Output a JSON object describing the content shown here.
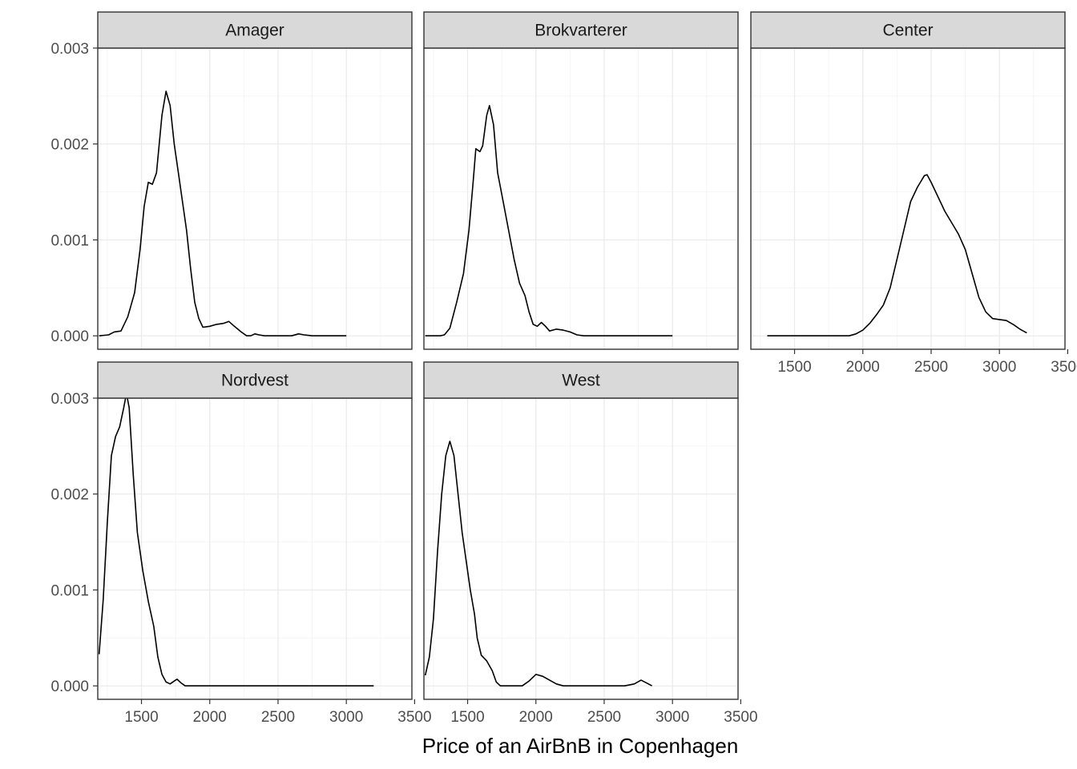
{
  "chart_data": {
    "type": "line",
    "subtype": "density",
    "facet_layout": "wrap-3-columns",
    "title": "",
    "xlabel": "Price of an AirBnB in Copenhagen",
    "ylabel": "",
    "xlim": [
      1180,
      3480
    ],
    "ylim": [
      -0.00014,
      0.003
    ],
    "x_ticks": [
      1500,
      2000,
      2500,
      3000,
      3500
    ],
    "x_tick_labels": [
      "1500",
      "2000",
      "2500",
      "3000",
      "3500"
    ],
    "y_ticks": [
      0,
      0.001,
      0.002,
      0.003
    ],
    "y_tick_labels": [
      "0.000",
      "0.001",
      "0.002",
      "0.003"
    ],
    "grid": true,
    "legend": "none",
    "line_color": "#000000",
    "strip_color": "#d9d9d9",
    "series": [
      {
        "name": "Amager",
        "points": [
          [
            1190,
            0.0
          ],
          [
            1260,
            1e-05
          ],
          [
            1300,
            4e-05
          ],
          [
            1350,
            5e-05
          ],
          [
            1400,
            0.0002
          ],
          [
            1450,
            0.00045
          ],
          [
            1490,
            0.0009
          ],
          [
            1520,
            0.00135
          ],
          [
            1550,
            0.0016
          ],
          [
            1580,
            0.00158
          ],
          [
            1610,
            0.0017
          ],
          [
            1650,
            0.0023
          ],
          [
            1680,
            0.00255
          ],
          [
            1710,
            0.0024
          ],
          [
            1740,
            0.002
          ],
          [
            1770,
            0.0017
          ],
          [
            1800,
            0.0014
          ],
          [
            1830,
            0.0011
          ],
          [
            1860,
            0.0007
          ],
          [
            1890,
            0.00035
          ],
          [
            1920,
            0.00018
          ],
          [
            1950,
            9e-05
          ],
          [
            2000,
            0.0001
          ],
          [
            2050,
            0.00012
          ],
          [
            2100,
            0.00013
          ],
          [
            2140,
            0.00015
          ],
          [
            2180,
            0.0001
          ],
          [
            2230,
            4e-05
          ],
          [
            2270,
            0.0
          ],
          [
            2300,
            0.0
          ],
          [
            2330,
            2e-05
          ],
          [
            2360,
            1e-05
          ],
          [
            2400,
            0.0
          ],
          [
            2500,
            0.0
          ],
          [
            2600,
            0.0
          ],
          [
            2650,
            2e-05
          ],
          [
            2690,
            1e-05
          ],
          [
            2750,
            0.0
          ],
          [
            2900,
            0.0
          ],
          [
            3000,
            0.0
          ]
        ]
      },
      {
        "name": "Brokvarterer",
        "points": [
          [
            1190,
            0.0
          ],
          [
            1300,
            0.0
          ],
          [
            1330,
            1e-05
          ],
          [
            1370,
            8e-05
          ],
          [
            1420,
            0.00035
          ],
          [
            1470,
            0.00065
          ],
          [
            1510,
            0.0011
          ],
          [
            1540,
            0.0016
          ],
          [
            1560,
            0.00195
          ],
          [
            1590,
            0.00192
          ],
          [
            1610,
            0.00198
          ],
          [
            1640,
            0.0023
          ],
          [
            1660,
            0.0024
          ],
          [
            1690,
            0.0022
          ],
          [
            1720,
            0.0017
          ],
          [
            1760,
            0.0014
          ],
          [
            1800,
            0.0011
          ],
          [
            1840,
            0.0008
          ],
          [
            1880,
            0.00055
          ],
          [
            1920,
            0.00042
          ],
          [
            1950,
            0.00025
          ],
          [
            1980,
            0.00012
          ],
          [
            2010,
            0.0001
          ],
          [
            2040,
            0.00014
          ],
          [
            2070,
            0.0001
          ],
          [
            2100,
            5e-05
          ],
          [
            2150,
            7e-05
          ],
          [
            2200,
            6e-05
          ],
          [
            2250,
            4e-05
          ],
          [
            2300,
            1e-05
          ],
          [
            2350,
            0.0
          ],
          [
            2450,
            0.0
          ],
          [
            2600,
            0.0
          ],
          [
            3000,
            0.0
          ]
        ]
      },
      {
        "name": "Center",
        "points": [
          [
            1300,
            0.0
          ],
          [
            1600,
            0.0
          ],
          [
            1900,
            0.0
          ],
          [
            1950,
            2e-05
          ],
          [
            2000,
            6e-05
          ],
          [
            2050,
            0.00013
          ],
          [
            2100,
            0.00022
          ],
          [
            2150,
            0.00032
          ],
          [
            2200,
            0.0005
          ],
          [
            2250,
            0.0008
          ],
          [
            2300,
            0.0011
          ],
          [
            2350,
            0.0014
          ],
          [
            2400,
            0.00155
          ],
          [
            2450,
            0.00167
          ],
          [
            2470,
            0.00168
          ],
          [
            2500,
            0.0016
          ],
          [
            2550,
            0.00145
          ],
          [
            2600,
            0.0013
          ],
          [
            2650,
            0.00118
          ],
          [
            2700,
            0.00106
          ],
          [
            2750,
            0.0009
          ],
          [
            2800,
            0.00065
          ],
          [
            2850,
            0.0004
          ],
          [
            2900,
            0.00025
          ],
          [
            2950,
            0.00018
          ],
          [
            3000,
            0.00017
          ],
          [
            3050,
            0.00016
          ],
          [
            3100,
            0.00012
          ],
          [
            3150,
            7e-05
          ],
          [
            3200,
            3e-05
          ]
        ]
      },
      {
        "name": "Nordvest",
        "points": [
          [
            1190,
            0.00033
          ],
          [
            1220,
            0.0009
          ],
          [
            1250,
            0.0017
          ],
          [
            1280,
            0.0024
          ],
          [
            1310,
            0.0026
          ],
          [
            1340,
            0.0027
          ],
          [
            1370,
            0.0029
          ],
          [
            1390,
            0.00305
          ],
          [
            1410,
            0.0029
          ],
          [
            1440,
            0.0022
          ],
          [
            1470,
            0.0016
          ],
          [
            1510,
            0.0012
          ],
          [
            1550,
            0.00088
          ],
          [
            1590,
            0.00062
          ],
          [
            1620,
            0.0003
          ],
          [
            1650,
            0.00012
          ],
          [
            1680,
            4e-05
          ],
          [
            1710,
            2e-05
          ],
          [
            1740,
            5e-05
          ],
          [
            1760,
            7e-05
          ],
          [
            1790,
            3e-05
          ],
          [
            1820,
            0.0
          ],
          [
            1900,
            0.0
          ],
          [
            2100,
            0.0
          ],
          [
            2500,
            0.0
          ],
          [
            3000,
            0.0
          ],
          [
            3200,
            0.0
          ]
        ]
      },
      {
        "name": "West",
        "points": [
          [
            1190,
            0.00011
          ],
          [
            1220,
            0.0003
          ],
          [
            1250,
            0.0007
          ],
          [
            1280,
            0.0014
          ],
          [
            1310,
            0.002
          ],
          [
            1340,
            0.0024
          ],
          [
            1370,
            0.00255
          ],
          [
            1400,
            0.0024
          ],
          [
            1430,
            0.002
          ],
          [
            1460,
            0.0016
          ],
          [
            1490,
            0.0013
          ],
          [
            1520,
            0.001
          ],
          [
            1550,
            0.00075
          ],
          [
            1570,
            0.0005
          ],
          [
            1600,
            0.00032
          ],
          [
            1640,
            0.00026
          ],
          [
            1680,
            0.00016
          ],
          [
            1710,
            4e-05
          ],
          [
            1740,
            0.0
          ],
          [
            1800,
            0.0
          ],
          [
            1900,
            0.0
          ],
          [
            1950,
            5e-05
          ],
          [
            2000,
            0.00012
          ],
          [
            2050,
            0.0001
          ],
          [
            2100,
            6e-05
          ],
          [
            2150,
            2e-05
          ],
          [
            2200,
            0.0
          ],
          [
            2400,
            0.0
          ],
          [
            2650,
            0.0
          ],
          [
            2720,
            2e-05
          ],
          [
            2770,
            6e-05
          ],
          [
            2810,
            3e-05
          ],
          [
            2850,
            0.0
          ]
        ]
      }
    ]
  }
}
